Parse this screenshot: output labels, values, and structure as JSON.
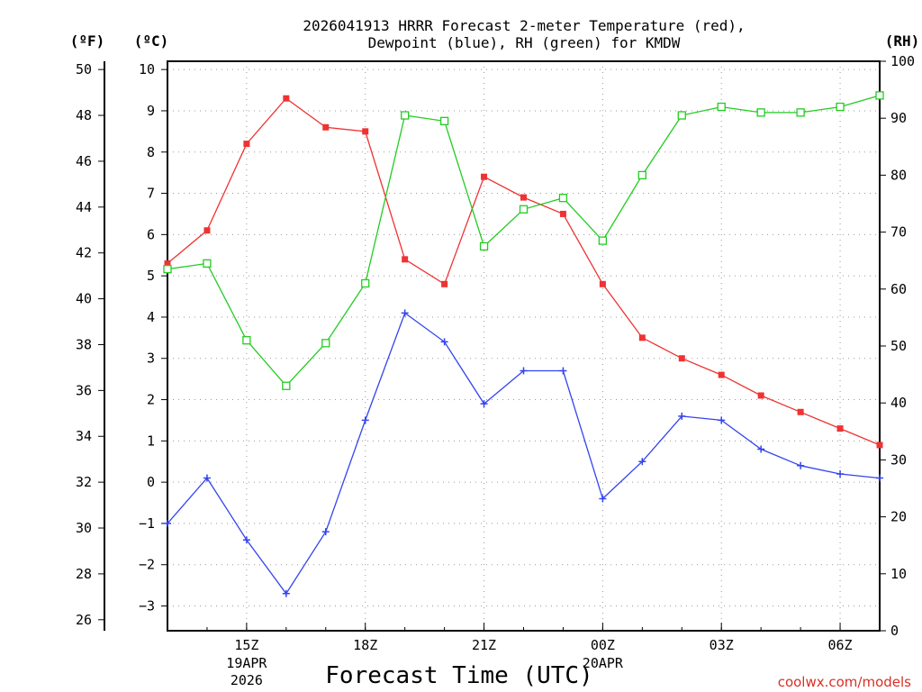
{
  "chart_data": {
    "type": "line",
    "title_line1": "2026041913 HRRR Forecast 2-meter Temperature (red),",
    "title_line2": "Dewpoint (blue), RH (green) for KMDW",
    "xlabel": "Forecast Time (UTC)",
    "credit": "coolwx.com/models",
    "units": {
      "left_outer": "(ºF)",
      "left_inner": "(ºC)",
      "right": "(RH)"
    },
    "x_hours": [
      13,
      14,
      15,
      16,
      17,
      18,
      19,
      20,
      21,
      22,
      23,
      24,
      25,
      26,
      27,
      28,
      29,
      30,
      31
    ],
    "x_ticks": [
      {
        "hour": 15,
        "label": "15Z",
        "sub1": "19APR",
        "sub2": "2026"
      },
      {
        "hour": 18,
        "label": "18Z",
        "sub1": "",
        "sub2": ""
      },
      {
        "hour": 21,
        "label": "21Z",
        "sub1": "",
        "sub2": ""
      },
      {
        "hour": 24,
        "label": "00Z",
        "sub1": "20APR",
        "sub2": ""
      },
      {
        "hour": 27,
        "label": "03Z",
        "sub1": "",
        "sub2": ""
      },
      {
        "hour": 30,
        "label": "06Z",
        "sub1": "",
        "sub2": ""
      }
    ],
    "celsius_axis": {
      "min": -3.6,
      "max": 10.2,
      "ticks": [
        -3,
        -2,
        -1,
        0,
        1,
        2,
        3,
        4,
        5,
        6,
        7,
        8,
        9,
        10
      ]
    },
    "fahrenheit_ticks": [
      26,
      28,
      30,
      32,
      34,
      36,
      38,
      40,
      42,
      44,
      46,
      48,
      50
    ],
    "rh_axis": {
      "min": 0,
      "max": 100,
      "ticks": [
        0,
        10,
        20,
        30,
        40,
        50,
        60,
        70,
        80,
        90,
        100
      ]
    },
    "series": [
      {
        "name": "2-meter Temperature",
        "axis": "celsius",
        "color": "#ee3333",
        "marker": "filled-square",
        "values": [
          5.3,
          6.1,
          8.2,
          9.3,
          8.6,
          8.5,
          5.4,
          4.8,
          7.4,
          6.9,
          6.5,
          4.8,
          3.5,
          3.0,
          2.6,
          2.1,
          1.7,
          1.3,
          0.9
        ]
      },
      {
        "name": "Dewpoint",
        "axis": "celsius",
        "color": "#3344ee",
        "marker": "plus",
        "values": [
          -1.0,
          0.1,
          -1.4,
          -2.7,
          -1.2,
          1.5,
          4.1,
          3.4,
          1.9,
          2.7,
          2.7,
          -0.4,
          0.5,
          1.6,
          1.5,
          0.8,
          0.4,
          0.2,
          0.1
        ]
      },
      {
        "name": "RH",
        "axis": "rh",
        "color": "#22cc22",
        "marker": "open-square",
        "values": [
          63.5,
          64.5,
          51,
          43,
          50.5,
          61,
          90.5,
          89.5,
          67.5,
          74,
          76,
          68.5,
          80,
          90.5,
          92,
          91,
          91,
          92,
          94
        ]
      }
    ]
  }
}
